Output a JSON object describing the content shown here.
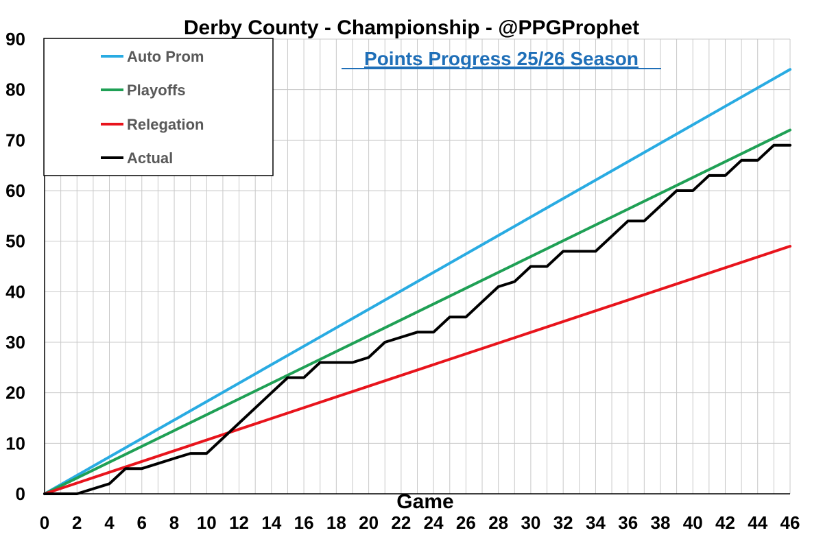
{
  "chart_data": {
    "type": "line",
    "title": "Derby County - Championship - @PPGProphet",
    "subtitle": "Points Progress 25/26 Season",
    "xlabel": "Game",
    "ylabel": "",
    "xlim": [
      0,
      46
    ],
    "ylim": [
      0,
      90
    ],
    "x_ticks": [
      "0",
      "2",
      "4",
      "6",
      "8",
      "10",
      "12",
      "14",
      "16",
      "18",
      "20",
      "22",
      "24",
      "26",
      "28",
      "30",
      "32",
      "34",
      "36",
      "38",
      "40",
      "42",
      "44",
      "46"
    ],
    "y_ticks": [
      "0",
      "10",
      "20",
      "30",
      "40",
      "50",
      "60",
      "70",
      "80",
      "90"
    ],
    "grid": true,
    "legend_position": "top-left",
    "series": [
      {
        "name": "Auto Prom",
        "color": "#29ABE2",
        "x": [
          0,
          46
        ],
        "y": [
          0,
          84
        ]
      },
      {
        "name": "Playoffs",
        "color": "#1FA055",
        "x": [
          0,
          46
        ],
        "y": [
          0,
          72
        ]
      },
      {
        "name": "Relegation",
        "color": "#E8141C",
        "x": [
          0,
          46
        ],
        "y": [
          0,
          49
        ]
      },
      {
        "name": "Actual",
        "color": "#000000",
        "x": [
          0,
          1,
          2,
          3,
          4,
          5,
          6,
          7,
          8,
          9,
          10,
          11,
          12,
          13,
          14,
          15,
          16,
          17,
          18,
          19,
          20,
          21,
          22,
          23,
          24,
          25,
          26,
          27,
          28,
          29,
          30,
          31,
          32,
          33,
          34,
          35,
          36,
          37,
          38,
          39,
          40,
          41,
          42,
          43,
          44,
          45,
          46
        ],
        "y": [
          0,
          0,
          0,
          1,
          2,
          5,
          5,
          6,
          7,
          8,
          8,
          11,
          14,
          17,
          20,
          23,
          23,
          26,
          26,
          26,
          27,
          30,
          31,
          32,
          32,
          35,
          35,
          38,
          41,
          42,
          45,
          45,
          48,
          48,
          48,
          51,
          54,
          54,
          57,
          60,
          60,
          63,
          63,
          66,
          66,
          69,
          69
        ]
      }
    ]
  }
}
